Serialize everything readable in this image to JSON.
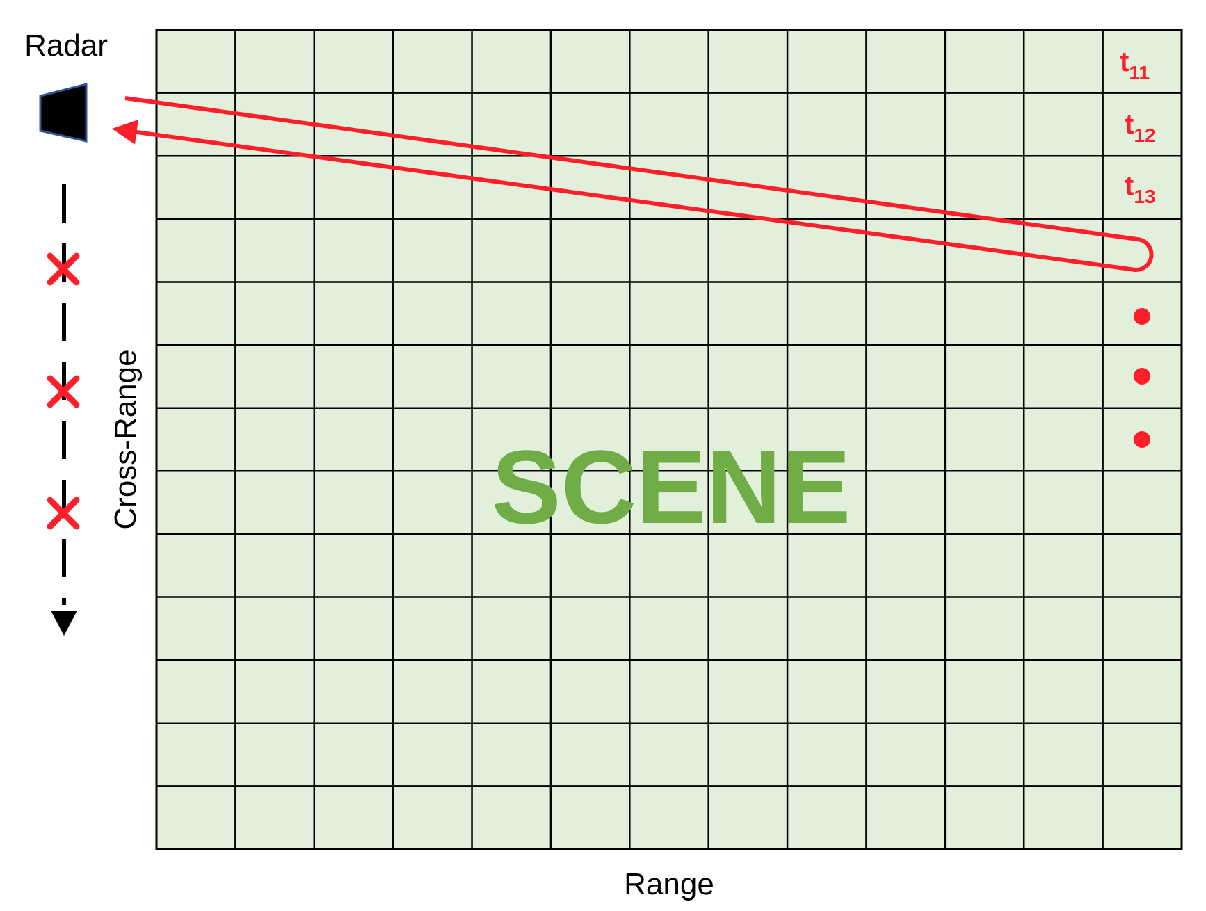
{
  "radar": {
    "label": "Radar",
    "icon": "radar-antenna-icon"
  },
  "axes": {
    "range_label": "Range",
    "cross_range_label": "Cross-Range"
  },
  "scene": {
    "label": "SCENE",
    "columns": 13,
    "rows": 13
  },
  "time_labels": [
    {
      "base": "t",
      "sub": "11"
    },
    {
      "base": "t",
      "sub": "12"
    },
    {
      "base": "t",
      "sub": "13"
    }
  ],
  "colors": {
    "grid_fill": "#e2efda",
    "grid_line": "#000000",
    "accent": "#ff1f2a",
    "scene_text": "#70ad47",
    "radar_body": "#000000",
    "radar_border": "#2f5597"
  }
}
